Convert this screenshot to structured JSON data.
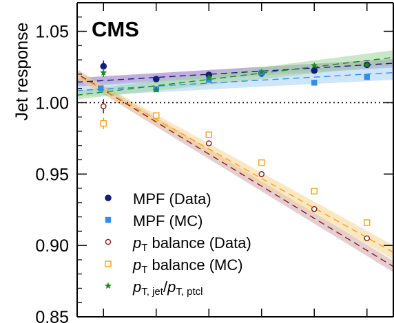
{
  "chart_data": {
    "type": "scatter",
    "title": "",
    "experiment_label": "CMS",
    "ylabel": "Jet response",
    "xlabel": "",
    "ylim": [
      0.85,
      1.07
    ],
    "yticks": [
      0.85,
      0.9,
      0.95,
      1.0,
      1.05
    ],
    "yticklabels": [
      "0.85",
      "0.90",
      "0.95",
      "1.00",
      "1.05"
    ],
    "xlim": [
      0.5,
      6.5
    ],
    "xticks": [
      1,
      2,
      3,
      4,
      5,
      6
    ],
    "xticklabels": [],
    "reference_line": 1.0,
    "x": [
      1,
      2,
      3,
      4,
      5,
      6
    ],
    "legend_position": "bottom-left",
    "series": [
      {
        "name": "MPF (Data)",
        "legend_main": "MPF (Data)",
        "marker": "circle-filled",
        "color": "#131d7a",
        "values": [
          1.0255,
          1.0165,
          1.0195,
          1.0205,
          1.0225,
          1.0265
        ],
        "first_err": 0.004,
        "fit": [
          1.0155,
          1.0265
        ],
        "band_width": [
          0.003,
          0.003
        ],
        "band_color": "#8c6ec0"
      },
      {
        "name": "MPF (MC)",
        "legend_main": "MPF (MC)",
        "marker": "square-filled",
        "color": "#2f8ee8",
        "values": [
          1.01,
          1.0095,
          1.016,
          1.021,
          1.014,
          1.018
        ],
        "first_err": 0.002,
        "fit": [
          1.0095,
          1.02
        ],
        "band_width": [
          0.004,
          0.005
        ],
        "band_color": "#a8d0f4"
      },
      {
        "name": "pT balance (Data)",
        "legend_main": "p",
        "legend_sub": "T",
        "legend_rest": " balance (Data)",
        "marker": "circle-open",
        "color": "#8a1a1a",
        "values": [
          0.9975,
          0.991,
          0.9715,
          0.95,
          0.9255,
          0.905
        ],
        "first_err": 0.005,
        "fit": [
          1.009,
          0.8965
        ],
        "band_width": [
          0.003,
          0.004
        ],
        "band_color": "#cfa6a8"
      },
      {
        "name": "pT balance (MC)",
        "legend_main": "p",
        "legend_sub": "T",
        "legend_rest": " balance (MC)",
        "marker": "square-open",
        "color": "#f4a21c",
        "values": [
          0.9855,
          0.991,
          0.9775,
          0.958,
          0.938,
          0.916
        ],
        "first_err": 0.004,
        "fit": [
          1.009,
          0.9055
        ],
        "band_width": [
          0.003,
          0.005
        ],
        "band_color": "#f8d592"
      },
      {
        "name": "pT, jet/pT, ptcl",
        "legend_main": "p",
        "legend_sub": "T, jet",
        "legend_rest": "/",
        "legend_main2": "p",
        "legend_sub2": "T, ptcl",
        "marker": "star",
        "color": "#1d8a1d",
        "values": [
          1.021,
          1.009,
          1.0175,
          1.0215,
          1.026,
          1.0265
        ],
        "first_err": 0.003,
        "fit": [
          1.0075,
          1.0295
        ],
        "band_width": [
          0.003,
          0.005
        ],
        "band_color": "#9fd49a"
      }
    ]
  }
}
